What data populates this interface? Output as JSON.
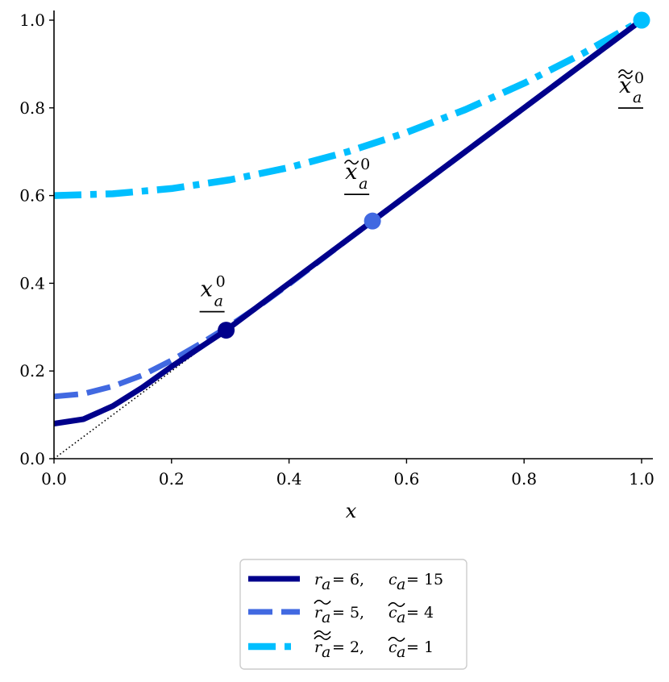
{
  "chart_data": {
    "type": "line",
    "xlabel": "x",
    "ylabel": "",
    "xlim": [
      0.0,
      1.0
    ],
    "ylim": [
      0.0,
      1.0
    ],
    "xticks": [
      "0.0",
      "0.2",
      "0.4",
      "0.6",
      "0.8",
      "1.0"
    ],
    "yticks": [
      "0.0",
      "0.2",
      "0.4",
      "0.6",
      "0.8",
      "1.0"
    ],
    "grid": false,
    "legend_position": "bottom-center, below plot",
    "reference_line": {
      "style": "dotted",
      "color": "#000000",
      "points": [
        [
          0.0,
          0.0
        ],
        [
          1.0,
          1.0
        ]
      ]
    },
    "series": [
      {
        "name": "r_a = 6,  c_a = 15",
        "color": "#00008b",
        "style": "solid",
        "x": [
          0.0,
          0.05,
          0.1,
          0.15,
          0.2,
          0.25,
          0.293,
          0.35,
          0.4,
          0.5,
          0.6,
          0.7,
          0.8,
          0.9,
          1.0
        ],
        "y": [
          0.08,
          0.09,
          0.12,
          0.162,
          0.21,
          0.255,
          0.293,
          0.35,
          0.4,
          0.5,
          0.6,
          0.7,
          0.8,
          0.9,
          1.0
        ],
        "marker": {
          "x": 0.293,
          "y": 0.293,
          "label": "x",
          "label_sup": "0",
          "label_sub": "a",
          "decoration": "underline"
        }
      },
      {
        "name": "r̃_a = 5,  c̃_a = 4",
        "color": "#4169e1",
        "style": "dashed",
        "x": [
          0.0,
          0.05,
          0.1,
          0.15,
          0.2,
          0.25,
          0.3,
          0.35,
          0.4,
          0.45,
          0.5,
          0.542,
          0.6,
          0.7,
          0.8,
          0.9,
          1.0
        ],
        "y": [
          0.142,
          0.148,
          0.165,
          0.19,
          0.224,
          0.263,
          0.304,
          0.349,
          0.398,
          0.449,
          0.5,
          0.542,
          0.6,
          0.7,
          0.8,
          0.9,
          1.0
        ],
        "marker": {
          "x": 0.542,
          "y": 0.542,
          "label": "x",
          "label_sup": "0",
          "label_sub": "a",
          "decoration": "tilde-underline"
        }
      },
      {
        "name": "r̃̃_a = 2,  c̃_a = 1",
        "color": "#00bfff",
        "style": "dashdot",
        "x": [
          0.0,
          0.1,
          0.2,
          0.3,
          0.4,
          0.5,
          0.6,
          0.7,
          0.8,
          0.9,
          1.0
        ],
        "y": [
          0.6,
          0.604,
          0.616,
          0.636,
          0.664,
          0.7,
          0.744,
          0.796,
          0.856,
          0.924,
          1.0
        ],
        "marker": {
          "x": 1.0,
          "y": 1.0,
          "label": "x",
          "label_sup": "0",
          "label_sub": "a",
          "decoration": "double-tilde-underline"
        }
      }
    ]
  },
  "legend": {
    "entries": [
      {
        "lhs": "r",
        "lhs_sub": "a",
        "lhs_decoration": "none",
        "lhs_value": " = 6, ",
        "rhs": "c",
        "rhs_sub": "a",
        "rhs_decoration": "none",
        "rhs_value": " = 15"
      },
      {
        "lhs": "r",
        "lhs_sub": "a",
        "lhs_decoration": "tilde",
        "lhs_value": " = 5, ",
        "rhs": "c",
        "rhs_sub": "a",
        "rhs_decoration": "tilde",
        "rhs_value": " = 4"
      },
      {
        "lhs": "r",
        "lhs_sub": "a",
        "lhs_decoration": "double-tilde",
        "lhs_value": " = 2, ",
        "rhs": "c",
        "rhs_sub": "a",
        "rhs_decoration": "tilde",
        "rhs_value": " = 1"
      }
    ]
  }
}
